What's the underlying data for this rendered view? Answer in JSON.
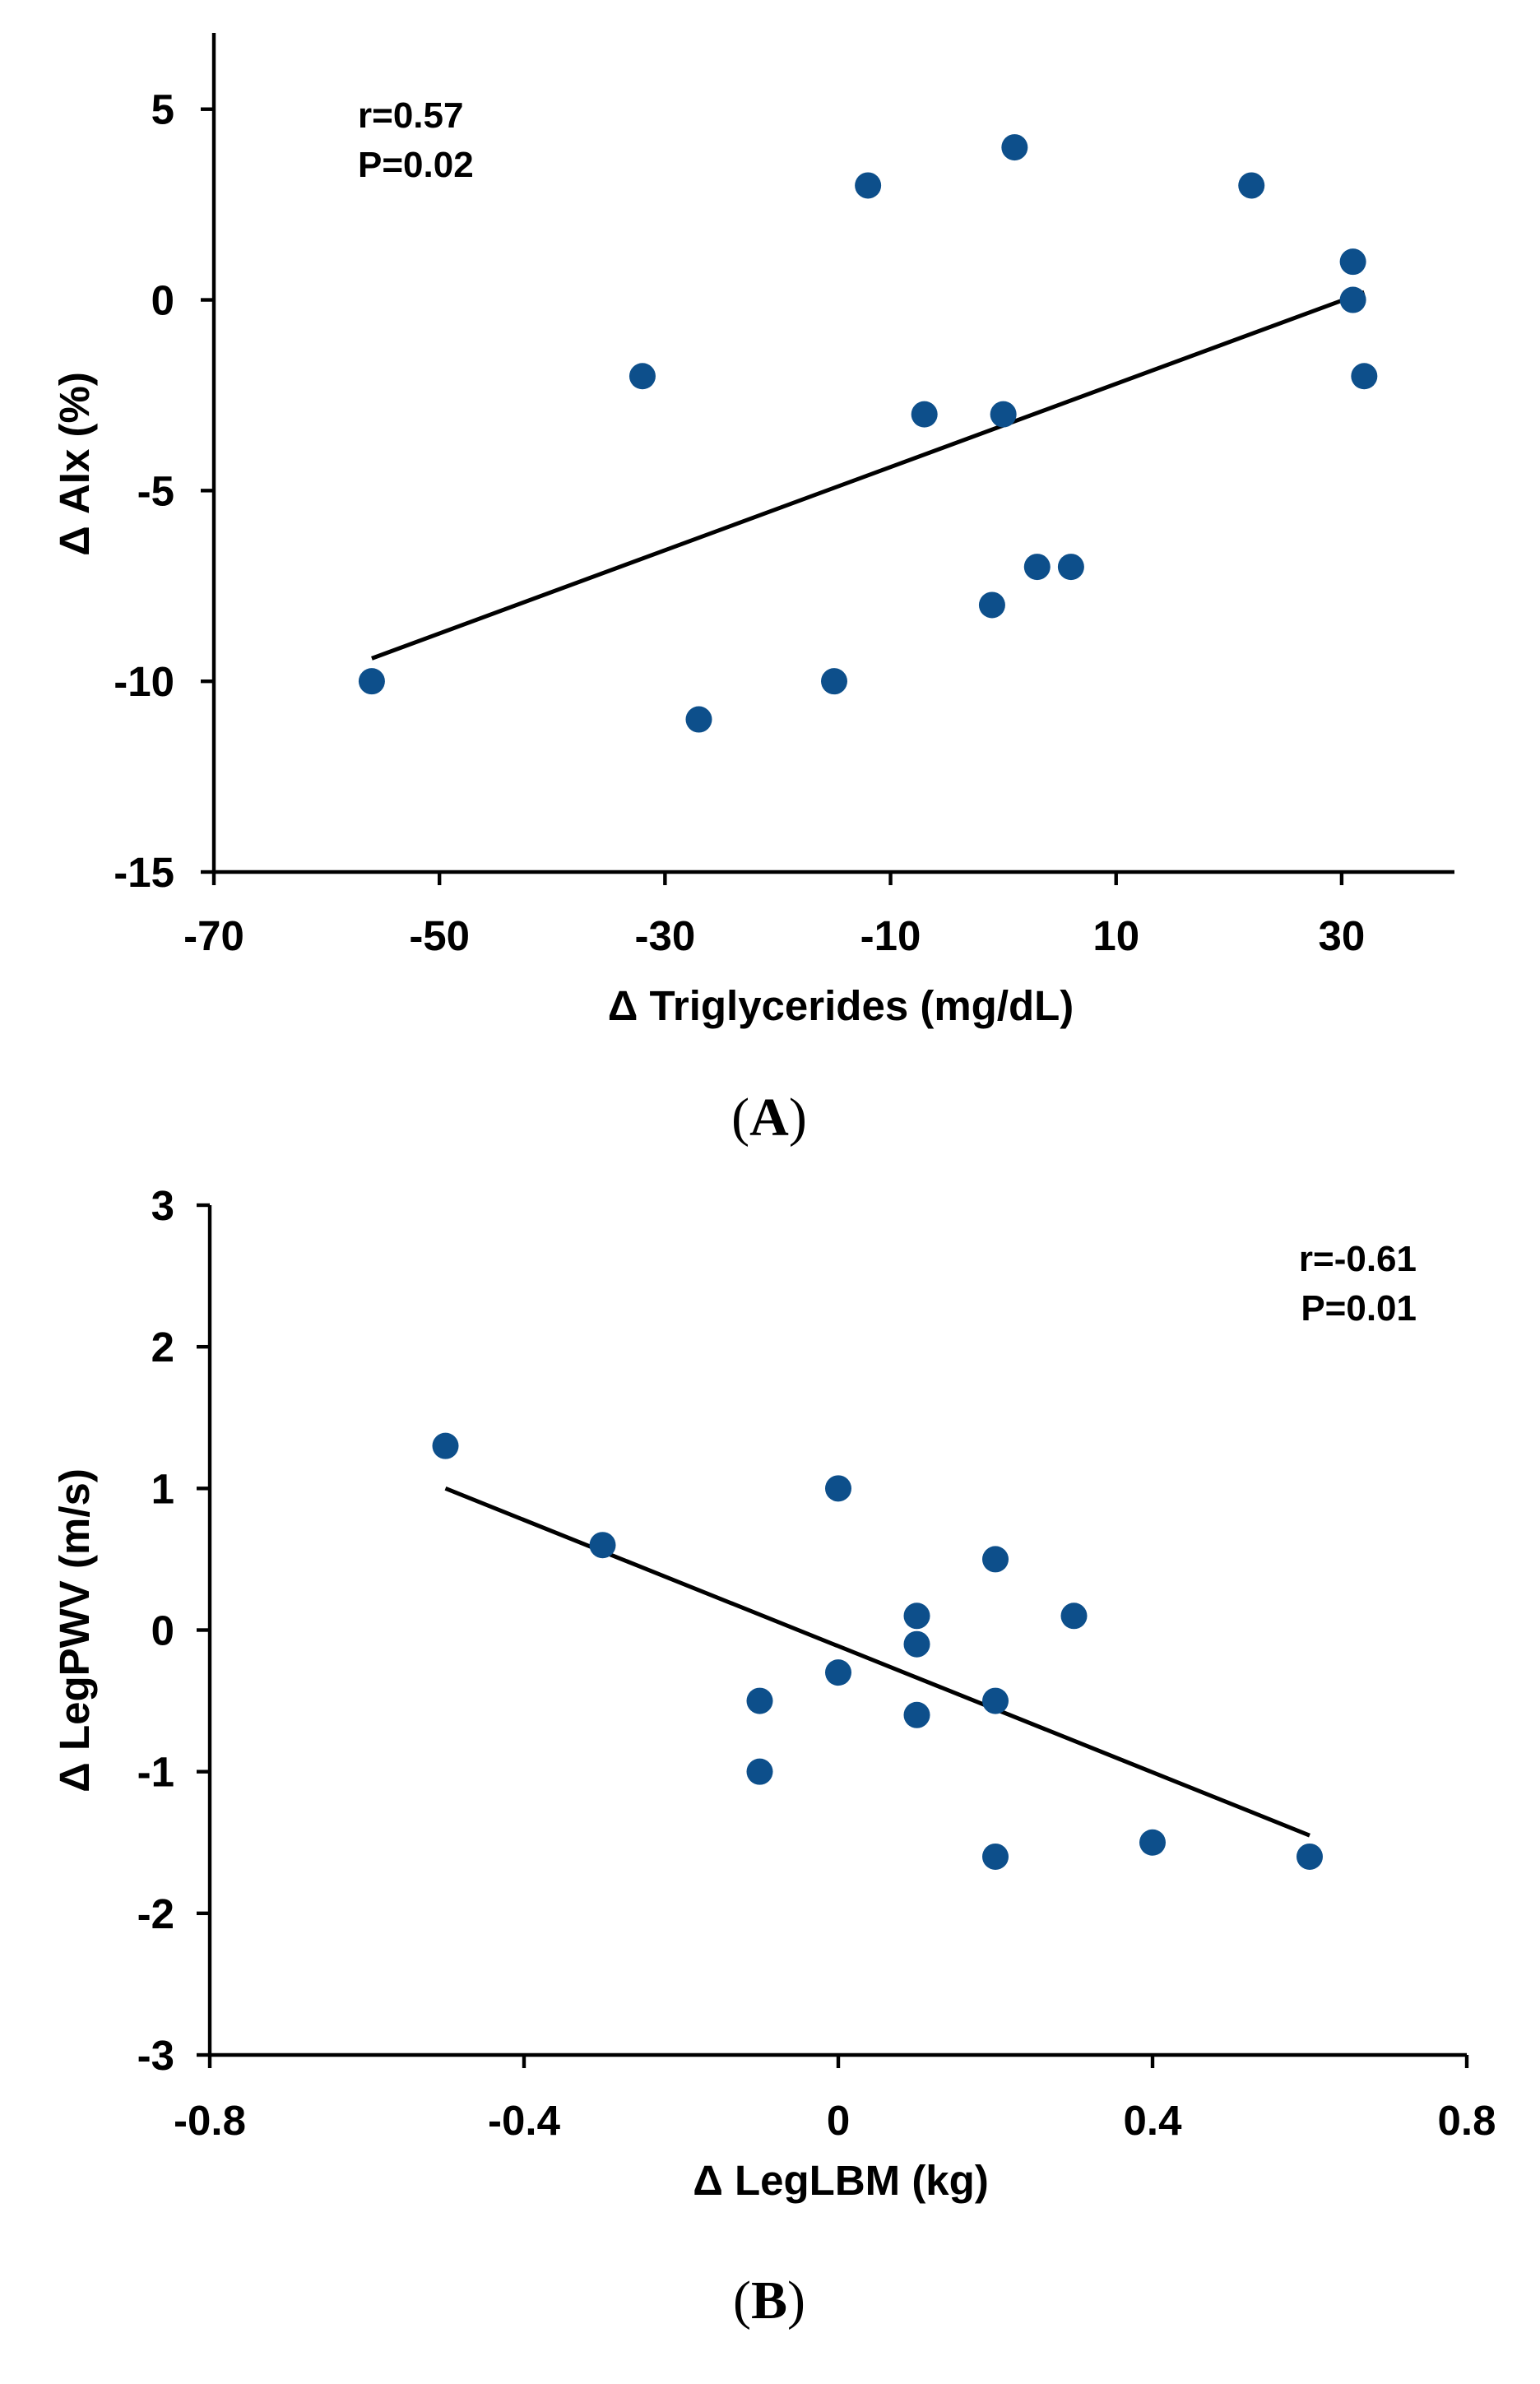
{
  "figure": {
    "panels": [
      {
        "panel_label": {
          "open": "(",
          "letter": "A",
          "close": ")"
        },
        "stats": [
          "r=0.57",
          "P=0.02"
        ],
        "stats_anchor": "top-left"
      },
      {
        "panel_label": {
          "open": "(",
          "letter": "B",
          "close": ")"
        },
        "stats": [
          "r=-0.61",
          "P=0.01"
        ],
        "stats_anchor": "top-right"
      }
    ]
  },
  "chart_data": [
    {
      "type": "scatter",
      "xlabel": "Δ Triglycerides (mg/dL)",
      "ylabel": "Δ AIx (%)",
      "xlim": [
        -70,
        40
      ],
      "ylim": [
        -15,
        7
      ],
      "xticks": [
        -70,
        -50,
        -30,
        -10,
        10,
        30
      ],
      "yticks": [
        -15,
        -10,
        -5,
        0,
        5
      ],
      "xtick_labels": [
        "-70",
        "-50",
        "-30",
        "-10",
        "10",
        "30"
      ],
      "ytick_labels": [
        "-15",
        "-10",
        "-5",
        "0",
        "5"
      ],
      "grid": false,
      "marker_color": "#0d4f8b",
      "points": [
        {
          "x": -56,
          "y": -10
        },
        {
          "x": -32,
          "y": -2
        },
        {
          "x": -27,
          "y": -11
        },
        {
          "x": -15,
          "y": -10
        },
        {
          "x": -12,
          "y": 3
        },
        {
          "x": -7,
          "y": -3
        },
        {
          "x": -1,
          "y": -8
        },
        {
          "x": 0,
          "y": -3
        },
        {
          "x": 1,
          "y": 4
        },
        {
          "x": 3,
          "y": -7
        },
        {
          "x": 6,
          "y": -7
        },
        {
          "x": 22,
          "y": 3
        },
        {
          "x": 31,
          "y": 1
        },
        {
          "x": 31,
          "y": 0
        },
        {
          "x": 32,
          "y": -2
        }
      ],
      "trendline": {
        "x": [
          -56,
          32
        ],
        "y": [
          -9.4,
          0.2
        ]
      }
    },
    {
      "type": "scatter",
      "xlabel": "Δ LegLBM (kg)",
      "ylabel": "Δ LegPWV (m/s)",
      "xlim": [
        -0.8,
        0.8
      ],
      "ylim": [
        -3,
        3
      ],
      "xticks": [
        -0.8,
        -0.4,
        0,
        0.4,
        0.8
      ],
      "yticks": [
        -3,
        -2,
        -1,
        0,
        1,
        2,
        3
      ],
      "xtick_labels": [
        "-0.8",
        "-0.4",
        "0",
        "0.4",
        "0.8"
      ],
      "ytick_labels": [
        "-3",
        "-2",
        "-1",
        "0",
        "1",
        "2",
        "3"
      ],
      "grid": false,
      "marker_color": "#0d4f8b",
      "points": [
        {
          "x": -0.5,
          "y": 1.3
        },
        {
          "x": -0.3,
          "y": 0.6
        },
        {
          "x": -0.1,
          "y": -0.5
        },
        {
          "x": -0.1,
          "y": -1.0
        },
        {
          "x": 0.0,
          "y": 1.0
        },
        {
          "x": 0.0,
          "y": -0.3
        },
        {
          "x": 0.1,
          "y": 0.1
        },
        {
          "x": 0.1,
          "y": -0.1
        },
        {
          "x": 0.1,
          "y": -0.6
        },
        {
          "x": 0.2,
          "y": 0.5
        },
        {
          "x": 0.2,
          "y": -0.5
        },
        {
          "x": 0.2,
          "y": -1.6
        },
        {
          "x": 0.3,
          "y": 0.1
        },
        {
          "x": 0.4,
          "y": -1.5
        },
        {
          "x": 0.6,
          "y": -1.6
        }
      ],
      "trendline": {
        "x": [
          -0.5,
          0.6
        ],
        "y": [
          1.0,
          -1.45
        ]
      }
    }
  ]
}
